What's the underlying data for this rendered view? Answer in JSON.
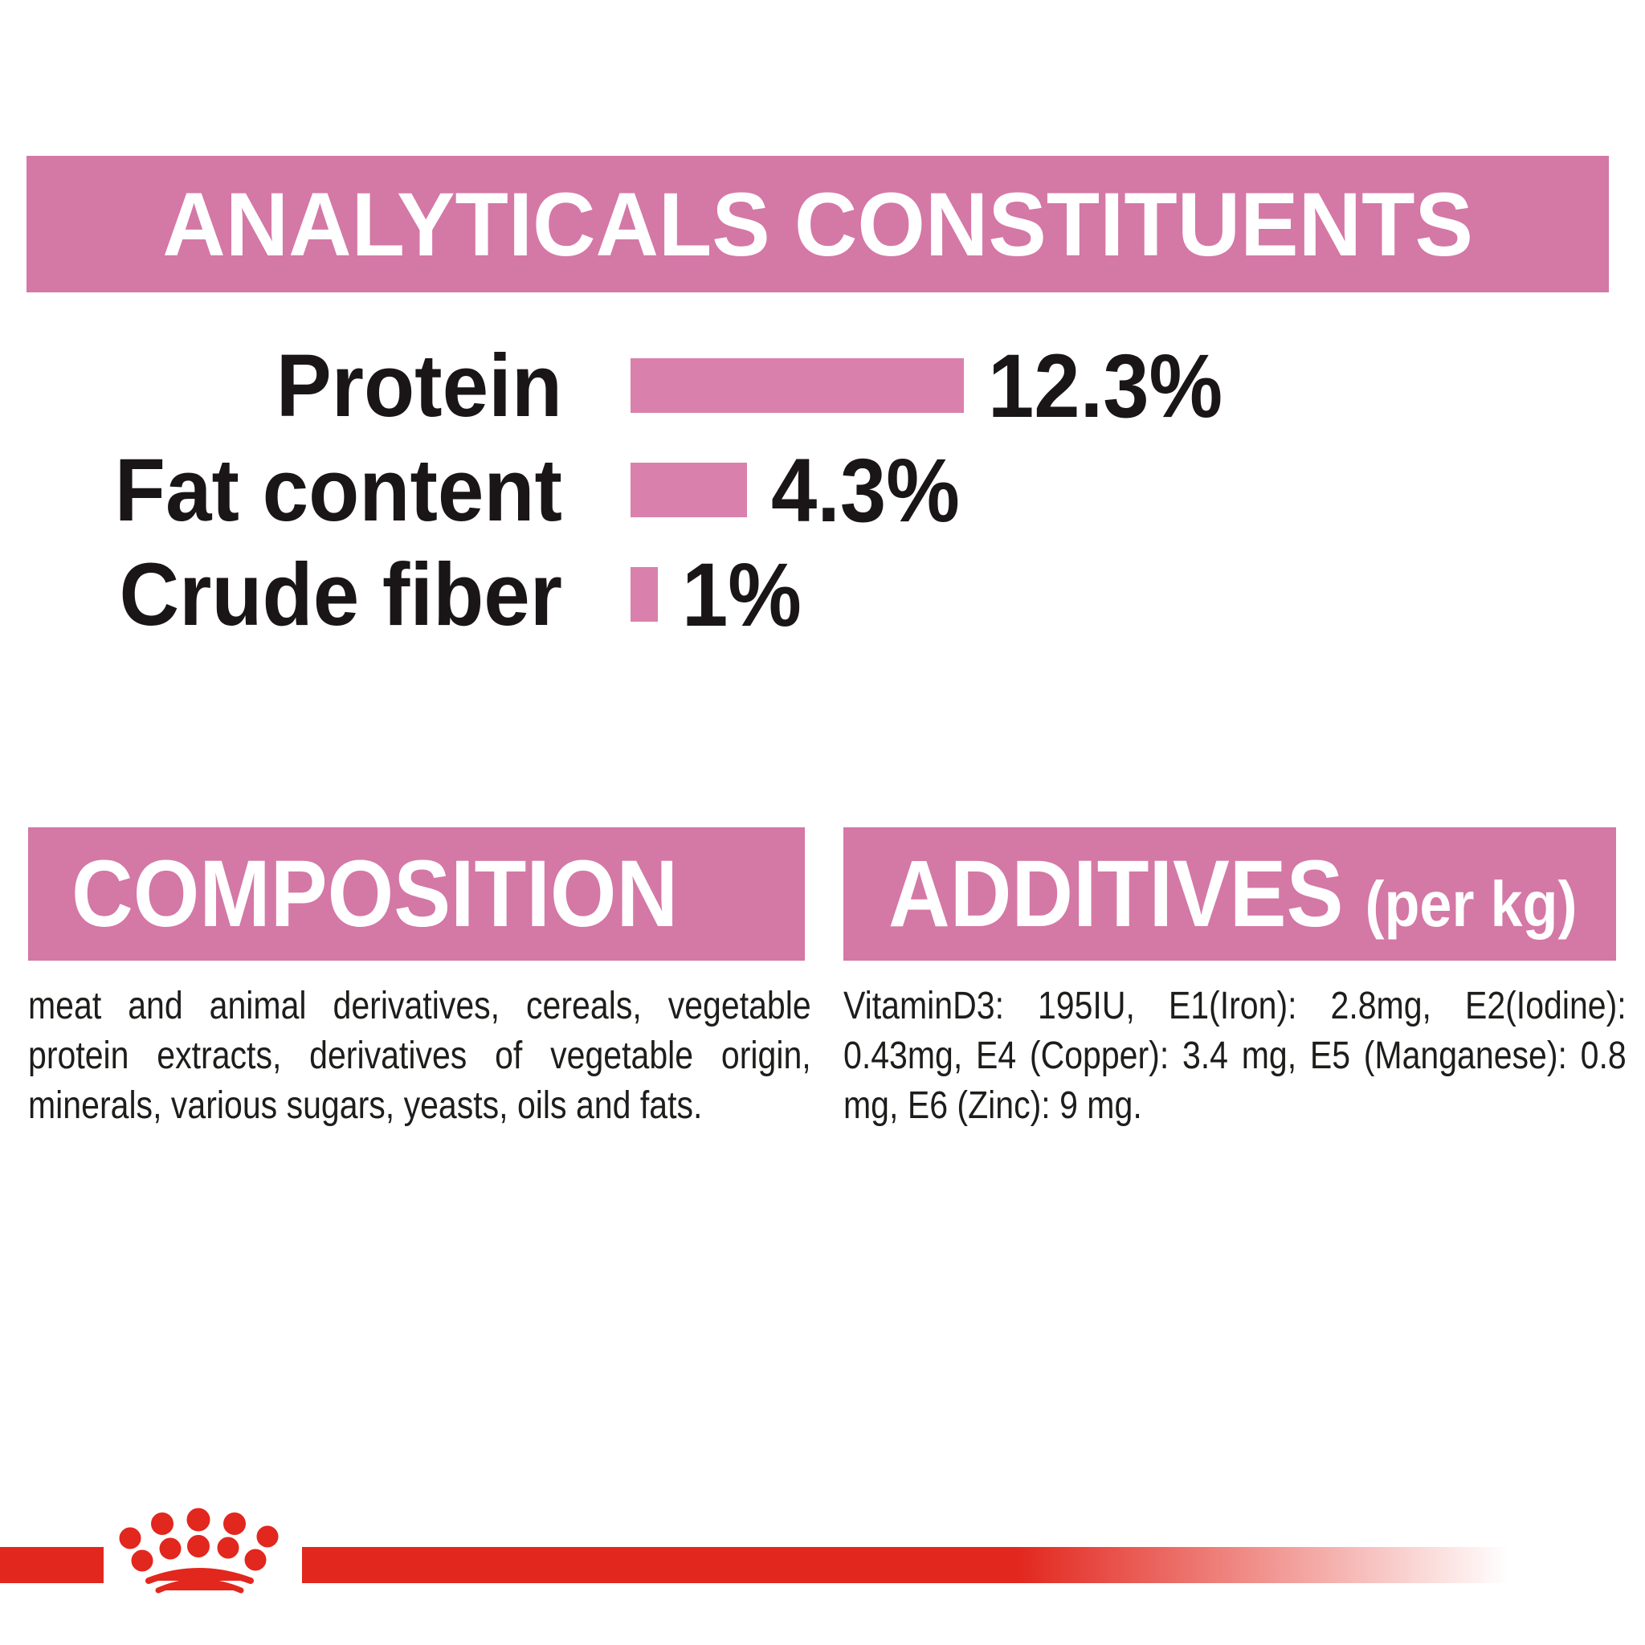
{
  "colors": {
    "background": "#ffffff",
    "banner_pink": "#d478a6",
    "bar_pink": "#d981ac",
    "red": "#e2271e",
    "banner_text": "#ffffff",
    "label_text": "#1a1617",
    "body_text": "#1d1d1b"
  },
  "chart_data": {
    "type": "bar",
    "orientation": "horizontal",
    "title": "ANALYTICALS CONSTITUENTS",
    "categories": [
      "Protein",
      "Fat content",
      "Crude fiber"
    ],
    "values": [
      12.3,
      4.3,
      1
    ],
    "value_labels": [
      "12.3%",
      "4.3%",
      "1%"
    ],
    "unit": "%",
    "xlim": [
      0,
      13
    ],
    "grid": false,
    "legend": "none",
    "bar_color": "#d981ac",
    "category_label_position": "left-of-bar",
    "value_label_position": "right-of-bar"
  },
  "composition": {
    "title": "COMPOSITION",
    "body": "meat and animal derivatives, cereals, vegetable protein extracts, derivatives of vegetable origin, minerals, various sugars, yeasts, oils and fats."
  },
  "additives": {
    "title": "ADDITIVES",
    "title_suffix": "(per kg)",
    "body": "VitaminD3: 195IU, E1(Iron): 2.8mg, E2(Iodine): 0.43mg, E4 (Copper): 3.4 mg, E5 (Manganese): 0.8 mg, E6 (Zinc): 9 mg."
  },
  "footer": {
    "logo": "royal-canin-crown"
  }
}
